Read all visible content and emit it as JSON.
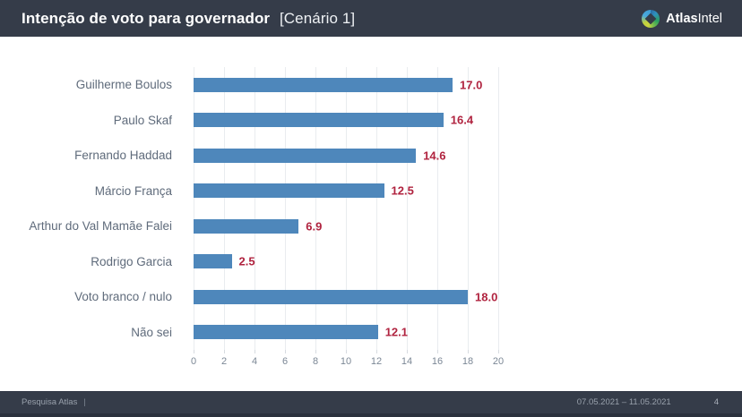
{
  "header": {
    "title_bold": "Intenção de voto para governador",
    "title_regular": "[Cenário 1]",
    "logo_bold": "Atlas",
    "logo_regular": "Intel"
  },
  "chart_data": {
    "type": "bar",
    "orientation": "horizontal",
    "title": "Intenção de voto para governador [Cenário 1]",
    "categories": [
      "Guilherme Boulos",
      "Paulo Skaf",
      "Fernando Haddad",
      "Márcio França",
      "Arthur do Val Mamãe Falei",
      "Rodrigo Garcia",
      "Voto branco / nulo",
      "Não sei"
    ],
    "values": [
      17.0,
      16.4,
      14.6,
      12.5,
      6.9,
      2.5,
      18.0,
      12.1
    ],
    "value_labels": [
      "17.0",
      "16.4",
      "14.6",
      "12.5",
      "6.9",
      "2.5",
      "18.0",
      "12.1"
    ],
    "xlabel": "",
    "ylabel": "",
    "xlim": [
      0,
      20
    ],
    "x_ticks": [
      0,
      2,
      4,
      6,
      8,
      10,
      12,
      14,
      16,
      18,
      20
    ],
    "grid": true,
    "legend": false,
    "bar_color": "#4e87bb",
    "value_color": "#b0233f",
    "label_color": "#5f6b7b"
  },
  "footer": {
    "left": "Pesquisa Atlas",
    "separator": "|",
    "date_range": "07.05.2021 – 11.05.2021",
    "page_number": "4"
  }
}
